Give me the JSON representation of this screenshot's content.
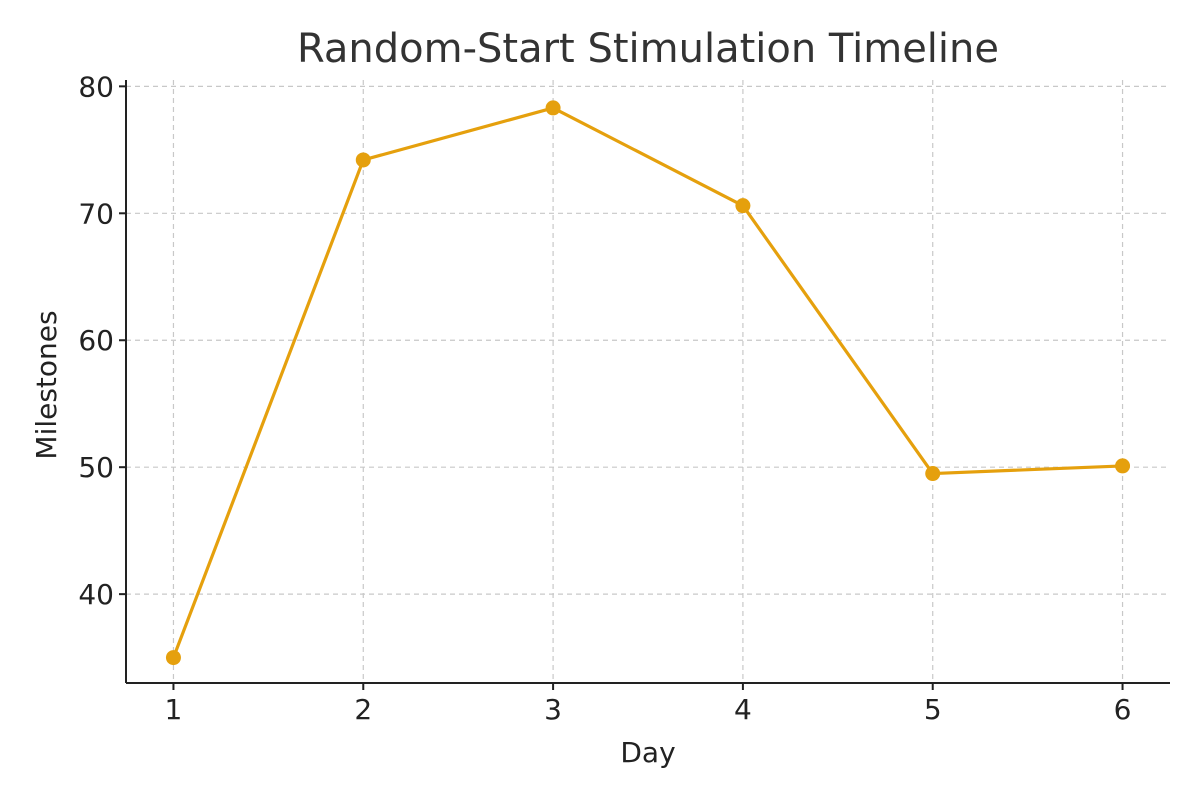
{
  "chart_data": {
    "type": "line",
    "title": "Random-Start Stimulation Timeline",
    "xlabel": "Day",
    "ylabel": "Milestones",
    "x": [
      1,
      2,
      3,
      4,
      5,
      6
    ],
    "xlim": [
      0.75,
      6.25
    ],
    "ylim": [
      33,
      80.5
    ],
    "x_ticks": [
      "1",
      "2",
      "3",
      "4",
      "5",
      "6"
    ],
    "y_ticks": [
      "40",
      "50",
      "60",
      "70",
      "80"
    ],
    "grid": true,
    "series": [
      {
        "color": "#E5A00D",
        "values": [
          35.0,
          74.2,
          78.3,
          70.6,
          49.5,
          50.1
        ]
      }
    ]
  }
}
